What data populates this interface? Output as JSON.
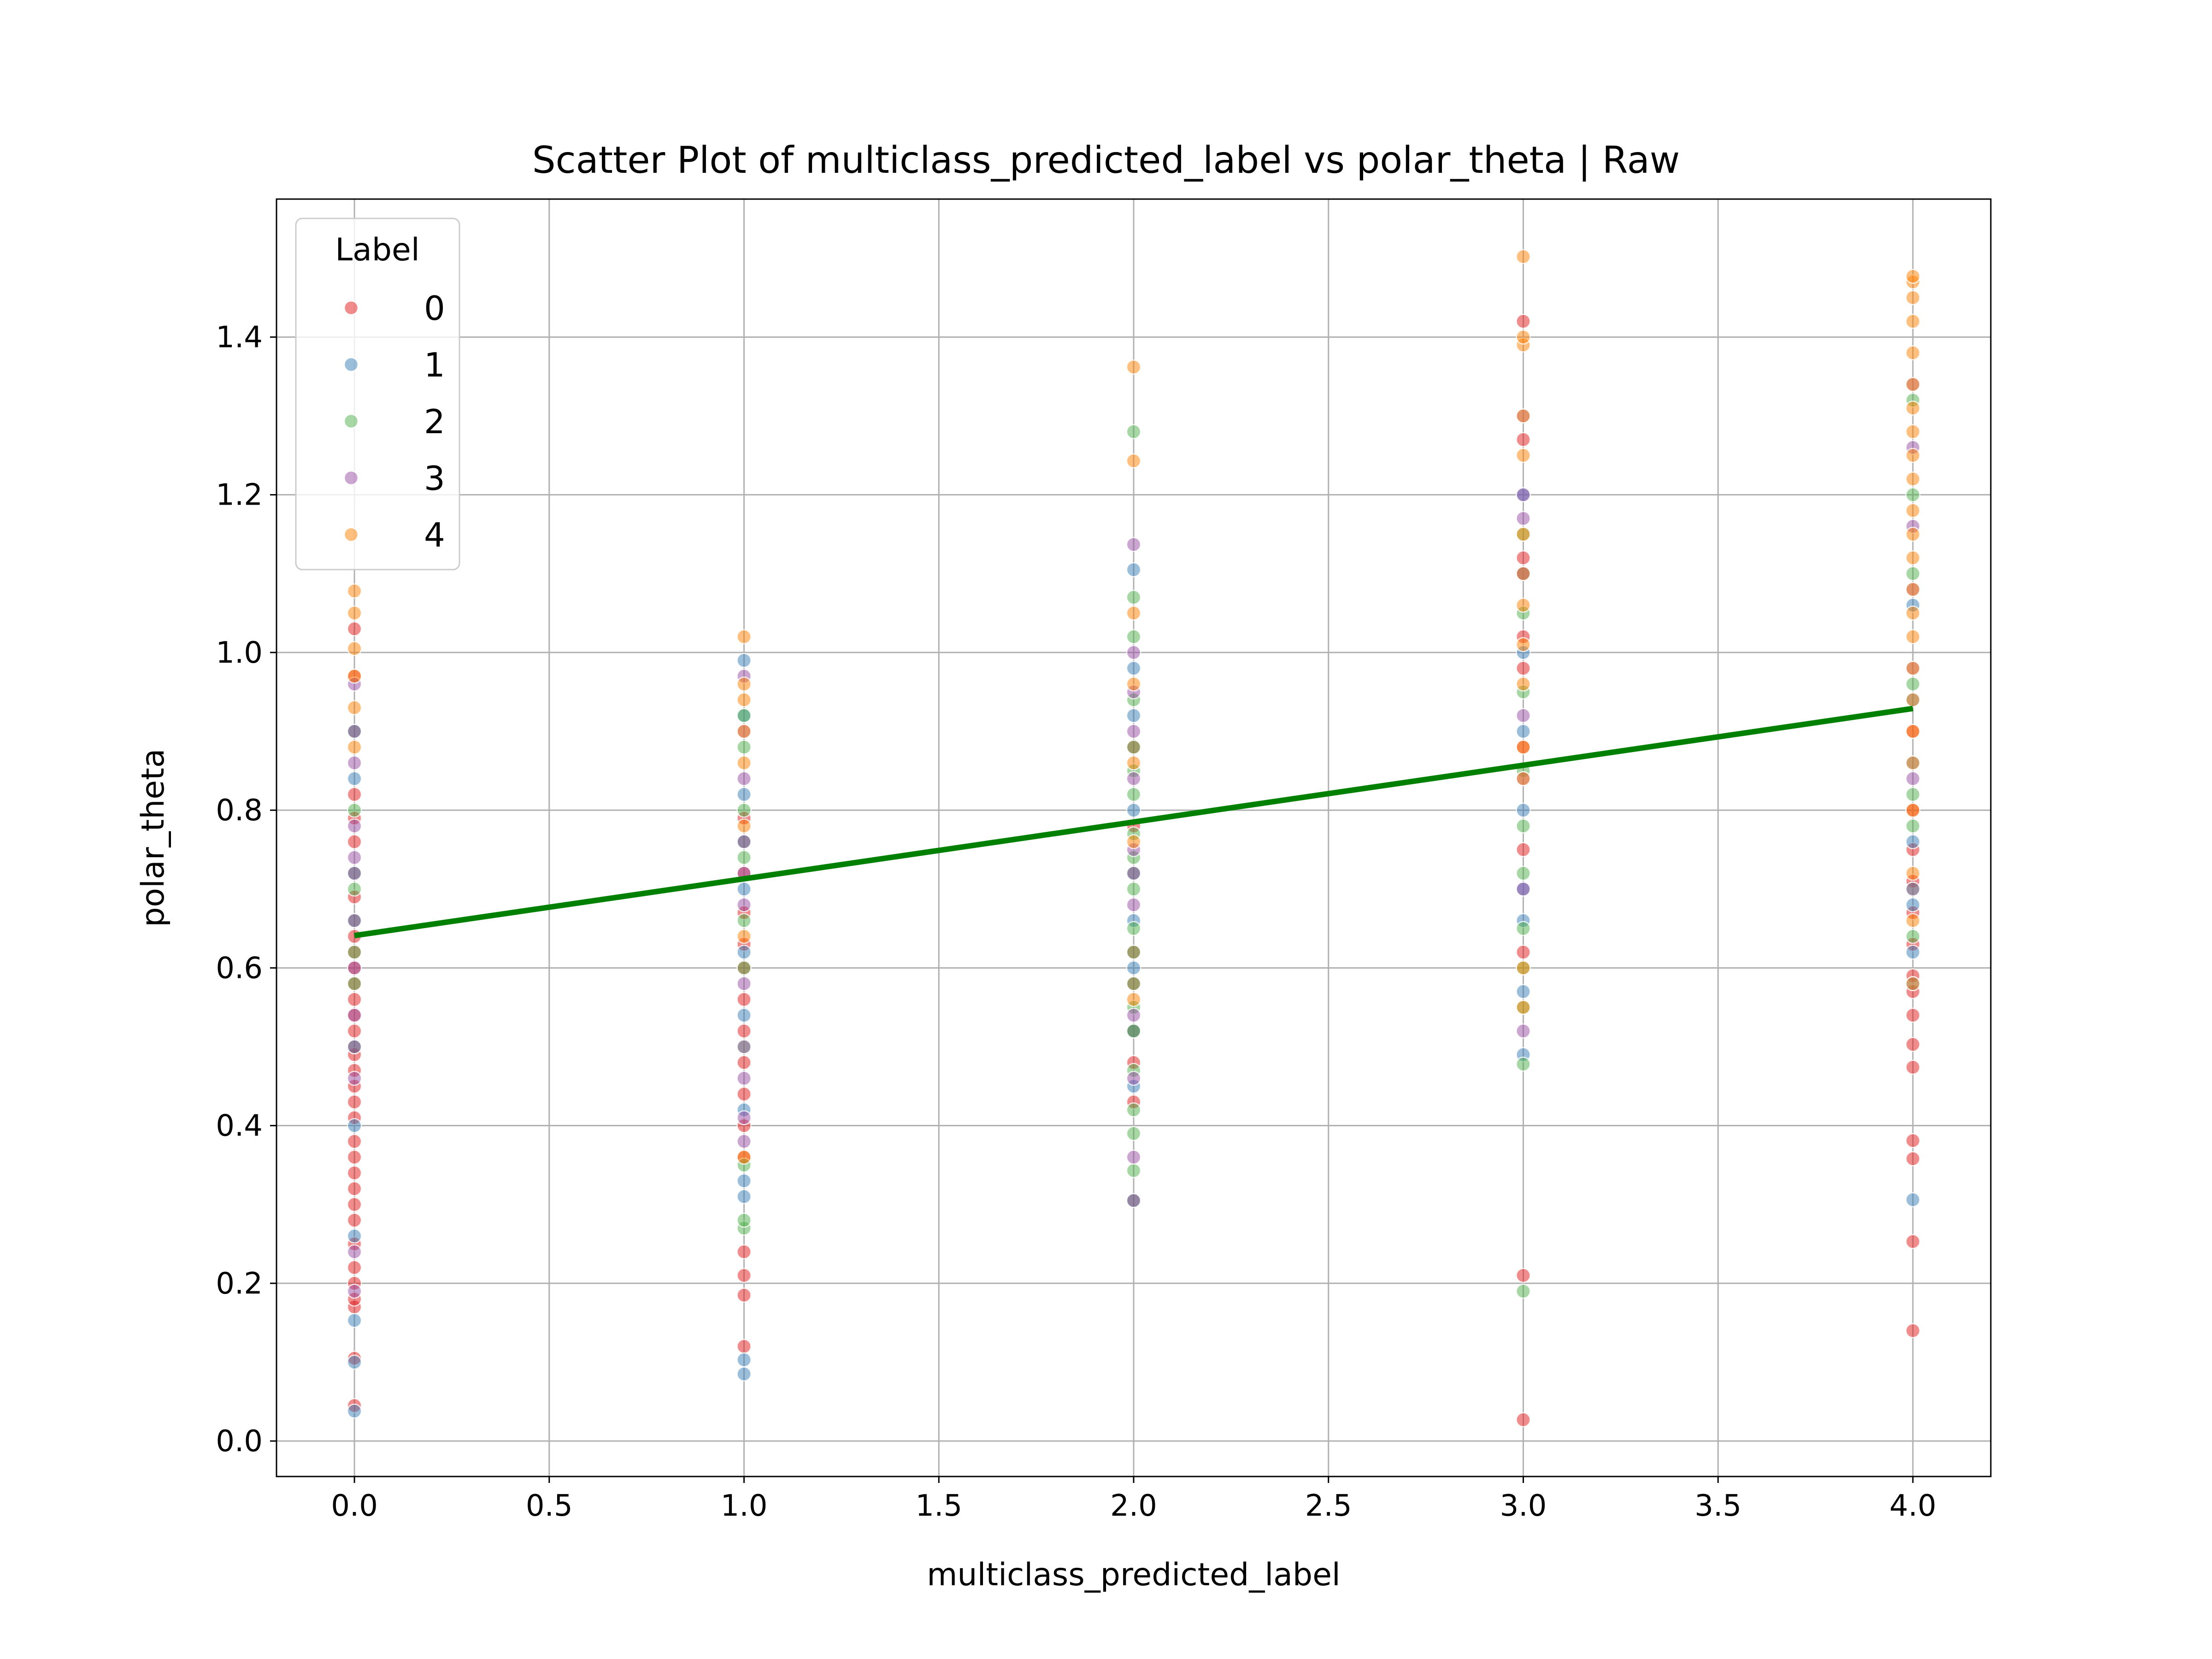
{
  "chart_data": {
    "type": "scatter",
    "title": "Scatter Plot of multiclass_predicted_label vs polar_theta | Raw",
    "xlabel": "multiclass_predicted_label",
    "ylabel": "polar_theta",
    "xlim": [
      -0.2,
      4.2
    ],
    "ylim": [
      -0.045,
      1.575
    ],
    "x_ticks": [
      "0.0",
      "0.5",
      "1.0",
      "1.5",
      "2.0",
      "2.5",
      "3.0",
      "3.5",
      "4.0"
    ],
    "x_tick_values": [
      0,
      0.5,
      1,
      1.5,
      2,
      2.5,
      3,
      3.5,
      4
    ],
    "y_ticks": [
      "0.0",
      "0.2",
      "0.4",
      "0.6",
      "0.8",
      "1.0",
      "1.2",
      "1.4"
    ],
    "y_tick_values": [
      0,
      0.2,
      0.4,
      0.6,
      0.8,
      1.0,
      1.2,
      1.4
    ],
    "grid": true,
    "legend": {
      "title": "Label",
      "position": "top-left",
      "entries": [
        {
          "name": "0",
          "color": "#e41a1c"
        },
        {
          "name": "1",
          "color": "#377eb8"
        },
        {
          "name": "2",
          "color": "#4daf4a"
        },
        {
          "name": "3",
          "color": "#984ea3"
        },
        {
          "name": "4",
          "color": "#ff7f00"
        }
      ]
    },
    "point_opacity": 0.5,
    "series": [
      {
        "name": "0",
        "color": "#e41a1c",
        "points": [
          [
            0,
            0.045
          ],
          [
            0,
            0.105
          ],
          [
            0,
            0.17
          ],
          [
            0,
            0.18
          ],
          [
            0,
            0.2
          ],
          [
            0,
            0.22
          ],
          [
            0,
            0.25
          ],
          [
            0,
            0.28
          ],
          [
            0,
            0.3
          ],
          [
            0,
            0.32
          ],
          [
            0,
            0.34
          ],
          [
            0,
            0.36
          ],
          [
            0,
            0.38
          ],
          [
            0,
            0.41
          ],
          [
            0,
            0.43
          ],
          [
            0,
            0.45
          ],
          [
            0,
            0.47
          ],
          [
            0,
            0.49
          ],
          [
            0,
            0.5
          ],
          [
            0,
            0.52
          ],
          [
            0,
            0.54
          ],
          [
            0,
            0.56
          ],
          [
            0,
            0.58
          ],
          [
            0,
            0.6
          ],
          [
            0,
            0.62
          ],
          [
            0,
            0.64
          ],
          [
            0,
            0.66
          ],
          [
            0,
            0.69
          ],
          [
            0,
            0.72
          ],
          [
            0,
            0.76
          ],
          [
            0,
            0.79
          ],
          [
            0,
            0.82
          ],
          [
            0,
            0.9
          ],
          [
            0,
            0.97
          ],
          [
            0,
            1.03
          ],
          [
            1,
            0.12
          ],
          [
            1,
            0.185
          ],
          [
            1,
            0.21
          ],
          [
            1,
            0.24
          ],
          [
            1,
            0.36
          ],
          [
            1,
            0.4
          ],
          [
            1,
            0.44
          ],
          [
            1,
            0.48
          ],
          [
            1,
            0.52
          ],
          [
            1,
            0.56
          ],
          [
            1,
            0.6
          ],
          [
            1,
            0.63
          ],
          [
            1,
            0.67
          ],
          [
            1,
            0.72
          ],
          [
            1,
            0.76
          ],
          [
            1,
            0.79
          ],
          [
            2,
            0.305
          ],
          [
            2,
            0.43
          ],
          [
            2,
            0.48
          ],
          [
            2,
            0.52
          ],
          [
            2,
            0.58
          ],
          [
            2,
            0.62
          ],
          [
            2,
            0.72
          ],
          [
            2,
            0.78
          ],
          [
            2,
            0.88
          ],
          [
            3,
            0.027
          ],
          [
            3,
            0.21
          ],
          [
            3,
            0.62
          ],
          [
            3,
            0.75
          ],
          [
            3,
            0.88
          ],
          [
            3,
            0.98
          ],
          [
            3,
            1.02
          ],
          [
            3,
            1.12
          ],
          [
            3,
            1.27
          ],
          [
            3,
            1.42
          ],
          [
            4,
            0.14
          ],
          [
            4,
            0.253
          ],
          [
            4,
            0.358
          ],
          [
            4,
            0.381
          ],
          [
            4,
            0.474
          ],
          [
            4,
            0.503
          ],
          [
            4,
            0.54
          ],
          [
            4,
            0.57
          ],
          [
            4,
            0.59
          ],
          [
            4,
            0.63
          ],
          [
            4,
            0.67
          ],
          [
            4,
            0.71
          ],
          [
            4,
            0.75
          ],
          [
            4,
            0.8
          ],
          [
            4,
            0.9
          ]
        ]
      },
      {
        "name": "1",
        "color": "#377eb8",
        "points": [
          [
            0,
            0.038
          ],
          [
            0,
            0.1
          ],
          [
            0,
            0.153
          ],
          [
            0,
            0.26
          ],
          [
            0,
            0.4
          ],
          [
            0,
            0.5
          ],
          [
            0,
            0.66
          ],
          [
            0,
            0.72
          ],
          [
            0,
            0.84
          ],
          [
            0,
            0.9
          ],
          [
            1,
            0.085
          ],
          [
            1,
            0.103
          ],
          [
            1,
            0.31
          ],
          [
            1,
            0.33
          ],
          [
            1,
            0.42
          ],
          [
            1,
            0.54
          ],
          [
            1,
            0.62
          ],
          [
            1,
            0.7
          ],
          [
            1,
            0.76
          ],
          [
            1,
            0.82
          ],
          [
            1,
            0.92
          ],
          [
            1,
            0.99
          ],
          [
            2,
            0.305
          ],
          [
            2,
            0.45
          ],
          [
            2,
            0.52
          ],
          [
            2,
            0.6
          ],
          [
            2,
            0.66
          ],
          [
            2,
            0.72
          ],
          [
            2,
            0.8
          ],
          [
            2,
            0.92
          ],
          [
            2,
            0.98
          ],
          [
            2,
            1.105
          ],
          [
            3,
            0.49
          ],
          [
            3,
            0.57
          ],
          [
            3,
            0.66
          ],
          [
            3,
            0.7
          ],
          [
            3,
            0.8
          ],
          [
            3,
            0.9
          ],
          [
            3,
            1.0
          ],
          [
            3,
            1.1
          ],
          [
            3,
            1.2
          ],
          [
            4,
            0.306
          ],
          [
            4,
            0.58
          ],
          [
            4,
            0.62
          ],
          [
            4,
            0.68
          ],
          [
            4,
            0.76
          ],
          [
            4,
            0.86
          ],
          [
            4,
            0.94
          ],
          [
            4,
            1.06
          ]
        ]
      },
      {
        "name": "2",
        "color": "#4daf4a",
        "points": [
          [
            0,
            0.58
          ],
          [
            0,
            0.62
          ],
          [
            0,
            0.7
          ],
          [
            0,
            0.8
          ],
          [
            1,
            0.27
          ],
          [
            1,
            0.28
          ],
          [
            1,
            0.35
          ],
          [
            1,
            0.5
          ],
          [
            1,
            0.6
          ],
          [
            1,
            0.66
          ],
          [
            1,
            0.74
          ],
          [
            1,
            0.8
          ],
          [
            1,
            0.88
          ],
          [
            1,
            0.92
          ],
          [
            2,
            0.343
          ],
          [
            2,
            0.39
          ],
          [
            2,
            0.42
          ],
          [
            2,
            0.47
          ],
          [
            2,
            0.52
          ],
          [
            2,
            0.55
          ],
          [
            2,
            0.58
          ],
          [
            2,
            0.62
          ],
          [
            2,
            0.65
          ],
          [
            2,
            0.7
          ],
          [
            2,
            0.74
          ],
          [
            2,
            0.77
          ],
          [
            2,
            0.82
          ],
          [
            2,
            0.85
          ],
          [
            2,
            0.88
          ],
          [
            2,
            0.94
          ],
          [
            2,
            1.02
          ],
          [
            2,
            1.07
          ],
          [
            2,
            1.28
          ],
          [
            3,
            0.19
          ],
          [
            3,
            0.478
          ],
          [
            3,
            0.55
          ],
          [
            3,
            0.6
          ],
          [
            3,
            0.65
          ],
          [
            3,
            0.72
          ],
          [
            3,
            0.78
          ],
          [
            3,
            0.85
          ],
          [
            3,
            0.95
          ],
          [
            3,
            1.05
          ],
          [
            3,
            1.15
          ],
          [
            4,
            0.64
          ],
          [
            4,
            0.7
          ],
          [
            4,
            0.78
          ],
          [
            4,
            0.82
          ],
          [
            4,
            0.96
          ],
          [
            4,
            1.1
          ],
          [
            4,
            1.2
          ],
          [
            4,
            1.32
          ]
        ]
      },
      {
        "name": "3",
        "color": "#984ea3",
        "points": [
          [
            0,
            0.19
          ],
          [
            0,
            0.24
          ],
          [
            0,
            0.46
          ],
          [
            0,
            0.54
          ],
          [
            0,
            0.6
          ],
          [
            0,
            0.74
          ],
          [
            0,
            0.78
          ],
          [
            0,
            0.86
          ],
          [
            0,
            0.96
          ],
          [
            1,
            0.38
          ],
          [
            1,
            0.41
          ],
          [
            1,
            0.46
          ],
          [
            1,
            0.5
          ],
          [
            1,
            0.58
          ],
          [
            1,
            0.68
          ],
          [
            1,
            0.72
          ],
          [
            1,
            0.84
          ],
          [
            1,
            0.9
          ],
          [
            1,
            0.97
          ],
          [
            2,
            0.36
          ],
          [
            2,
            0.46
          ],
          [
            2,
            0.54
          ],
          [
            2,
            0.68
          ],
          [
            2,
            0.75
          ],
          [
            2,
            0.84
          ],
          [
            2,
            0.9
          ],
          [
            2,
            0.95
          ],
          [
            2,
            1.0
          ],
          [
            2,
            1.137
          ],
          [
            3,
            0.52
          ],
          [
            3,
            0.7
          ],
          [
            3,
            0.84
          ],
          [
            3,
            0.92
          ],
          [
            3,
            1.1
          ],
          [
            3,
            1.17
          ],
          [
            3,
            1.2
          ],
          [
            3,
            1.3
          ],
          [
            4,
            0.7
          ],
          [
            4,
            0.84
          ],
          [
            4,
            0.98
          ],
          [
            4,
            1.08
          ],
          [
            4,
            1.16
          ],
          [
            4,
            1.26
          ],
          [
            4,
            1.34
          ]
        ]
      },
      {
        "name": "4",
        "color": "#ff7f00",
        "points": [
          [
            0,
            0.88
          ],
          [
            0,
            0.93
          ],
          [
            0,
            0.97
          ],
          [
            0,
            1.005
          ],
          [
            0,
            1.05
          ],
          [
            0,
            1.078
          ],
          [
            1,
            0.36
          ],
          [
            1,
            0.64
          ],
          [
            1,
            0.78
          ],
          [
            1,
            0.86
          ],
          [
            1,
            0.9
          ],
          [
            1,
            0.94
          ],
          [
            1,
            0.96
          ],
          [
            1,
            1.02
          ],
          [
            2,
            0.56
          ],
          [
            2,
            0.76
          ],
          [
            2,
            0.86
          ],
          [
            2,
            0.96
          ],
          [
            2,
            1.05
          ],
          [
            2,
            1.243
          ],
          [
            2,
            1.362
          ],
          [
            3,
            0.55
          ],
          [
            3,
            0.6
          ],
          [
            3,
            0.84
          ],
          [
            3,
            0.88
          ],
          [
            3,
            0.96
          ],
          [
            3,
            1.01
          ],
          [
            3,
            1.06
          ],
          [
            3,
            1.1
          ],
          [
            3,
            1.15
          ],
          [
            3,
            1.25
          ],
          [
            3,
            1.3
          ],
          [
            3,
            1.39
          ],
          [
            3,
            1.4
          ],
          [
            3,
            1.502
          ],
          [
            4,
            0.58
          ],
          [
            4,
            0.66
          ],
          [
            4,
            0.72
          ],
          [
            4,
            0.8
          ],
          [
            4,
            0.86
          ],
          [
            4,
            0.9
          ],
          [
            4,
            0.94
          ],
          [
            4,
            0.98
          ],
          [
            4,
            1.02
          ],
          [
            4,
            1.05
          ],
          [
            4,
            1.08
          ],
          [
            4,
            1.12
          ],
          [
            4,
            1.15
          ],
          [
            4,
            1.18
          ],
          [
            4,
            1.22
          ],
          [
            4,
            1.25
          ],
          [
            4,
            1.28
          ],
          [
            4,
            1.31
          ],
          [
            4,
            1.34
          ],
          [
            4,
            1.38
          ],
          [
            4,
            1.42
          ],
          [
            4,
            1.45
          ],
          [
            4,
            1.47
          ],
          [
            4,
            1.477
          ]
        ]
      }
    ],
    "regression_line": {
      "color": "#008000",
      "from": [
        0,
        0.641
      ],
      "to": [
        4,
        0.929
      ]
    }
  }
}
